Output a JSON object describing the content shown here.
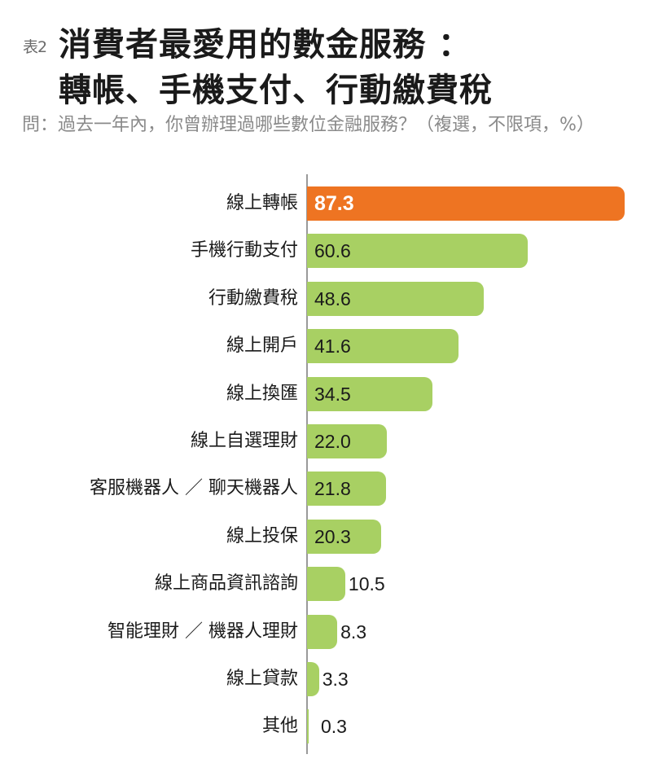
{
  "header": {
    "tag": "表2",
    "title_line1": "消費者最愛用的數金服務 ：",
    "title_line2": "轉帳、手機支付、行動繳費稅",
    "subtitle": "問：過去一年內，你曾辦理過哪些數位金融服務？（複選，不限項，%）"
  },
  "colors": {
    "highlight": "#ee7422",
    "bar": "#a8d063",
    "axis": "#9a9a9a"
  },
  "chart_data": {
    "type": "bar",
    "orientation": "horizontal",
    "title": "消費者最愛用的數金服務：轉帳、手機支付、行動繳費稅",
    "subtitle": "問：過去一年內，你曾辦理過哪些數位金融服務？（複選，不限項，%）",
    "xlabel": "",
    "ylabel": "",
    "unit": "%",
    "grid": false,
    "legend": null,
    "xlim": [
      0,
      87.3
    ],
    "categories": [
      "線上轉帳",
      "手機行動支付",
      "行動繳費稅",
      "線上開戶",
      "線上換匯",
      "線上自選理財",
      "客服機器人／聊天機器人",
      "線上投保",
      "線上商品資訊諮詢",
      "智能理財／機器人理財",
      "線上貸款",
      "其他"
    ],
    "values": [
      87.3,
      60.6,
      48.6,
      41.6,
      34.5,
      22.0,
      21.8,
      20.3,
      10.5,
      8.3,
      3.3,
      0.3
    ],
    "value_labels": [
      "87.3",
      "60.6",
      "48.6",
      "41.6",
      "34.5",
      "22.0",
      "21.8",
      "20.3",
      "10.5",
      "8.3",
      "3.3",
      "0.3"
    ],
    "highlighted_index": 0
  }
}
